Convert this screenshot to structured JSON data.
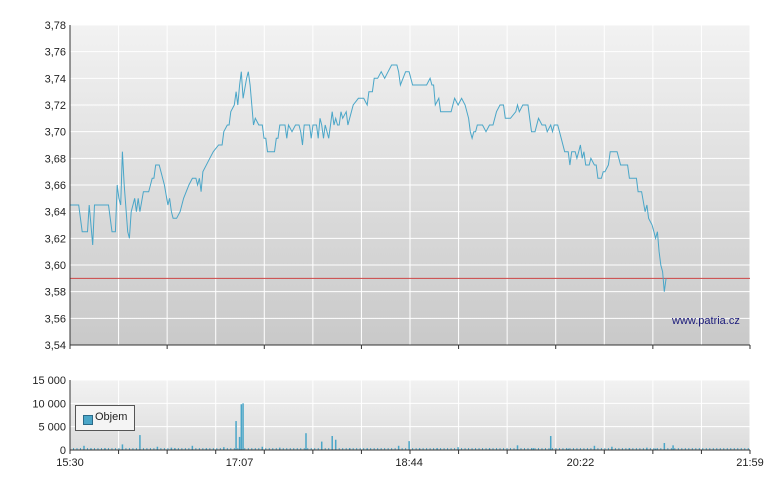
{
  "chart_data": [
    {
      "type": "line",
      "title": "",
      "xlabel": "",
      "ylabel": "",
      "ylim": [
        3.54,
        3.78
      ],
      "yticks": [
        "3,78",
        "3,76",
        "3,74",
        "3,72",
        "3,70",
        "3,68",
        "3,66",
        "3,64",
        "3,62",
        "3,60",
        "3,58",
        "3,56",
        "3,54"
      ],
      "ytick_values": [
        3.78,
        3.76,
        3.74,
        3.72,
        3.7,
        3.68,
        3.66,
        3.64,
        3.62,
        3.6,
        3.58,
        3.56,
        3.54
      ],
      "xlim": [
        0,
        389
      ],
      "reference_line": 3.59,
      "reference_color": "#cc4444",
      "series": [
        {
          "color": "#4aa6c8",
          "points": [
            [
              0,
              3.645
            ],
            [
              5,
              3.645
            ],
            [
              7,
              3.625
            ],
            [
              10,
              3.625
            ],
            [
              11,
              3.645
            ],
            [
              13,
              3.615
            ],
            [
              14,
              3.645
            ],
            [
              16,
              3.645
            ],
            [
              19,
              3.645
            ],
            [
              22,
              3.645
            ],
            [
              24,
              3.625
            ],
            [
              26,
              3.625
            ],
            [
              27,
              3.66
            ],
            [
              28,
              3.65
            ],
            [
              29,
              3.645
            ],
            [
              30,
              3.685
            ],
            [
              31,
              3.66
            ],
            [
              33,
              3.625
            ],
            [
              34,
              3.62
            ],
            [
              35,
              3.64
            ],
            [
              37,
              3.65
            ],
            [
              38,
              3.64
            ],
            [
              39,
              3.65
            ],
            [
              40,
              3.64
            ],
            [
              42,
              3.655
            ],
            [
              45,
              3.655
            ],
            [
              47,
              3.665
            ],
            [
              48,
              3.665
            ],
            [
              49,
              3.675
            ],
            [
              51,
              3.675
            ],
            [
              54,
              3.66
            ],
            [
              56,
              3.645
            ],
            [
              57,
              3.65
            ],
            [
              58,
              3.64
            ],
            [
              59,
              3.635
            ],
            [
              61,
              3.635
            ],
            [
              63,
              3.64
            ],
            [
              65,
              3.65
            ],
            [
              68,
              3.66
            ],
            [
              70,
              3.665
            ],
            [
              72,
              3.665
            ],
            [
              73,
              3.66
            ],
            [
              74,
              3.665
            ],
            [
              75,
              3.655
            ],
            [
              76,
              3.67
            ],
            [
              80,
              3.68
            ],
            [
              82,
              3.685
            ],
            [
              85,
              3.69
            ],
            [
              87,
              3.69
            ],
            [
              88,
              3.7
            ],
            [
              90,
              3.705
            ],
            [
              91,
              3.705
            ],
            [
              92,
              3.715
            ],
            [
              94,
              3.72
            ],
            [
              95,
              3.73
            ],
            [
              96,
              3.72
            ],
            [
              97,
              3.735
            ],
            [
              98,
              3.745
            ],
            [
              99,
              3.725
            ],
            [
              101,
              3.74
            ],
            [
              102,
              3.745
            ],
            [
              103,
              3.735
            ],
            [
              104,
              3.72
            ],
            [
              105,
              3.705
            ],
            [
              106,
              3.71
            ],
            [
              108,
              3.705
            ],
            [
              110,
              3.705
            ],
            [
              111,
              3.695
            ],
            [
              112,
              3.695
            ],
            [
              113,
              3.685
            ],
            [
              115,
              3.685
            ],
            [
              117,
              3.685
            ],
            [
              118,
              3.695
            ],
            [
              119,
              3.695
            ],
            [
              120,
              3.705
            ],
            [
              123,
              3.705
            ],
            [
              124,
              3.695
            ],
            [
              125,
              3.705
            ],
            [
              127,
              3.7
            ],
            [
              129,
              3.705
            ],
            [
              131,
              3.705
            ],
            [
              132,
              3.7
            ],
            [
              133,
              3.69
            ],
            [
              134,
              3.705
            ],
            [
              137,
              3.705
            ],
            [
              138,
              3.695
            ],
            [
              139,
              3.705
            ],
            [
              141,
              3.705
            ],
            [
              142,
              3.695
            ],
            [
              143,
              3.71
            ],
            [
              144,
              3.705
            ],
            [
              145,
              3.695
            ],
            [
              146,
              3.705
            ],
            [
              147,
              3.7
            ],
            [
              148,
              3.695
            ],
            [
              149,
              3.705
            ],
            [
              150,
              3.715
            ],
            [
              151,
              3.705
            ],
            [
              152,
              3.71
            ],
            [
              153,
              3.705
            ],
            [
              154,
              3.705
            ],
            [
              155,
              3.715
            ],
            [
              156,
              3.71
            ],
            [
              158,
              3.715
            ],
            [
              159,
              3.705
            ],
            [
              161,
              3.715
            ],
            [
              162,
              3.72
            ],
            [
              165,
              3.725
            ],
            [
              168,
              3.725
            ],
            [
              170,
              3.72
            ],
            [
              171,
              3.73
            ],
            [
              173,
              3.73
            ],
            [
              174,
              3.74
            ],
            [
              176,
              3.74
            ],
            [
              178,
              3.745
            ],
            [
              180,
              3.74
            ],
            [
              182,
              3.745
            ],
            [
              184,
              3.75
            ],
            [
              187,
              3.75
            ],
            [
              188,
              3.745
            ],
            [
              189,
              3.735
            ],
            [
              192,
              3.745
            ],
            [
              194,
              3.745
            ],
            [
              196,
              3.735
            ],
            [
              198,
              3.735
            ],
            [
              201,
              3.735
            ],
            [
              204,
              3.735
            ],
            [
              206,
              3.74
            ],
            [
              207,
              3.735
            ],
            [
              208,
              3.735
            ],
            [
              209,
              3.72
            ],
            [
              211,
              3.725
            ],
            [
              212,
              3.715
            ],
            [
              215,
              3.715
            ],
            [
              218,
              3.715
            ],
            [
              220,
              3.725
            ],
            [
              222,
              3.72
            ],
            [
              224,
              3.725
            ],
            [
              226,
              3.72
            ],
            [
              228,
              3.71
            ],
            [
              229,
              3.7
            ],
            [
              230,
              3.695
            ],
            [
              231,
              3.7
            ],
            [
              232,
              3.7
            ],
            [
              233,
              3.705
            ],
            [
              236,
              3.705
            ],
            [
              238,
              3.7
            ],
            [
              240,
              3.705
            ],
            [
              242,
              3.705
            ],
            [
              244,
              3.715
            ],
            [
              246,
              3.72
            ],
            [
              248,
              3.72
            ],
            [
              249,
              3.71
            ],
            [
              252,
              3.71
            ],
            [
              255,
              3.715
            ],
            [
              256,
              3.72
            ],
            [
              257,
              3.715
            ],
            [
              259,
              3.72
            ],
            [
              262,
              3.72
            ],
            [
              263,
              3.71
            ],
            [
              264,
              3.7
            ],
            [
              266,
              3.7
            ],
            [
              268,
              3.71
            ],
            [
              270,
              3.705
            ],
            [
              272,
              3.705
            ],
            [
              273,
              3.7
            ],
            [
              275,
              3.705
            ],
            [
              276,
              3.7
            ],
            [
              277,
              3.705
            ],
            [
              279,
              3.705
            ],
            [
              280,
              3.7
            ],
            [
              281,
              3.695
            ],
            [
              283,
              3.685
            ],
            [
              285,
              3.685
            ],
            [
              286,
              3.675
            ],
            [
              287,
              3.685
            ],
            [
              289,
              3.685
            ],
            [
              290,
              3.68
            ],
            [
              291,
              3.685
            ],
            [
              292,
              3.69
            ],
            [
              293,
              3.68
            ],
            [
              294,
              3.685
            ],
            [
              295,
              3.675
            ],
            [
              297,
              3.675
            ],
            [
              298,
              3.68
            ],
            [
              300,
              3.675
            ],
            [
              301,
              3.675
            ],
            [
              302,
              3.665
            ],
            [
              304,
              3.665
            ],
            [
              305,
              3.67
            ],
            [
              306,
              3.67
            ],
            [
              308,
              3.675
            ],
            [
              309,
              3.685
            ],
            [
              313,
              3.685
            ],
            [
              315,
              3.675
            ],
            [
              317,
              3.675
            ],
            [
              319,
              3.675
            ],
            [
              320,
              3.665
            ],
            [
              322,
              3.665
            ],
            [
              324,
              3.665
            ],
            [
              325,
              3.655
            ],
            [
              327,
              3.655
            ],
            [
              329,
              3.64
            ],
            [
              330,
              3.645
            ],
            [
              331,
              3.635
            ],
            [
              333,
              3.63
            ],
            [
              334,
              3.625
            ],
            [
              335,
              3.62
            ],
            [
              336,
              3.625
            ],
            [
              337,
              3.61
            ],
            [
              338,
              3.6
            ],
            [
              339,
              3.595
            ],
            [
              340,
              3.58
            ],
            [
              341,
              3.59
            ]
          ]
        }
      ]
    },
    {
      "type": "bar",
      "title": "",
      "xlabel": "",
      "ylabel": "",
      "ylim": [
        0,
        15000
      ],
      "yticks": [
        "15 000",
        "10 000",
        "5 000",
        "0"
      ],
      "ytick_values": [
        15000,
        10000,
        5000,
        0
      ],
      "xlim": [
        0,
        389
      ],
      "xticks": [
        "15:30",
        "17:07",
        "18:44",
        "20:22",
        "21:59"
      ],
      "xtick_values": [
        0,
        97,
        194,
        292,
        389
      ],
      "series": [
        {
          "name": "Objem",
          "color": "#4aa6c8",
          "bars": [
            [
              8,
              900
            ],
            [
              30,
              1200
            ],
            [
              40,
              3200
            ],
            [
              50,
              700
            ],
            [
              58,
              500
            ],
            [
              70,
              900
            ],
            [
              88,
              600
            ],
            [
              95,
              6200
            ],
            [
              97,
              2800
            ],
            [
              98,
              9800
            ],
            [
              99,
              10000
            ],
            [
              110,
              700
            ],
            [
              135,
              3600
            ],
            [
              144,
              1800
            ],
            [
              150,
              3000
            ],
            [
              152,
              2200
            ],
            [
              188,
              900
            ],
            [
              194,
              1900
            ],
            [
              222,
              600
            ],
            [
              256,
              1000
            ],
            [
              275,
              3000
            ],
            [
              300,
              900
            ],
            [
              310,
              700
            ],
            [
              340,
              1500
            ],
            [
              200,
              300
            ],
            [
              12,
              300
            ],
            [
              20,
              400
            ],
            [
              60,
              400
            ],
            [
              78,
              300
            ],
            [
              120,
              500
            ],
            [
              160,
              400
            ],
            [
              170,
              300
            ],
            [
              210,
              400
            ],
            [
              240,
              300
            ],
            [
              265,
              400
            ],
            [
              285,
              300
            ],
            [
              320,
              400
            ],
            [
              330,
              500
            ],
            [
              335,
              300
            ],
            [
              345,
              1000
            ]
          ]
        }
      ]
    }
  ],
  "legend": {
    "label": "Objem",
    "color": "#4aa6c8"
  },
  "watermark": "www.patria.cz",
  "colors": {
    "grid": "#ffffff",
    "bg_top": "#f2f2f2",
    "bg_bottom": "#cccccc",
    "line": "#4aa6c8",
    "reference": "#cc4444"
  }
}
